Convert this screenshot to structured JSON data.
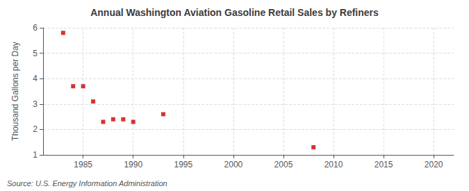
{
  "chart_data": {
    "type": "scatter",
    "title": "Annual Washington Aviation Gasoline Retail Sales by Refiners",
    "ylabel": "Thousand Gallons per Day",
    "annotation": "Source: U.S. Energy Information Administration",
    "x": [
      1983,
      1984,
      1985,
      1986,
      1987,
      1988,
      1989,
      1990,
      1993,
      2008
    ],
    "values": [
      5.8,
      3.7,
      3.7,
      3.1,
      2.3,
      2.4,
      2.4,
      2.3,
      2.6,
      1.3
    ],
    "color": "#cc0000",
    "marker": "square",
    "xlim": [
      1981,
      2022
    ],
    "ylim": [
      1,
      6
    ],
    "xticks": [
      1985,
      1990,
      1995,
      2000,
      2005,
      2010,
      2015,
      2020
    ],
    "yticks": [
      1,
      2,
      3,
      4,
      5,
      6
    ],
    "grid": true
  }
}
